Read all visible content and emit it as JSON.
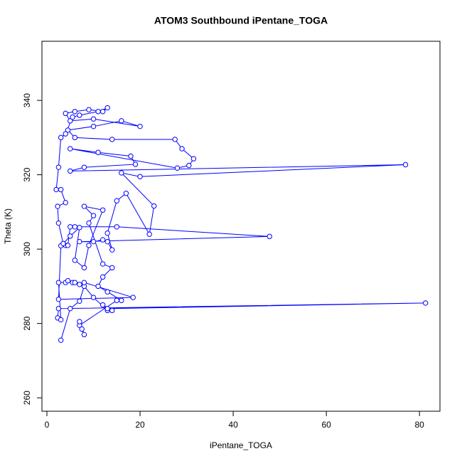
{
  "chart_data": {
    "type": "line",
    "title": "ATOM3 Southbound iPentane_TOGA",
    "xlabel": "iPentane_TOGA",
    "ylabel": "Theta (K)",
    "color": "#0000ff",
    "markers": true,
    "xlim": [
      -1.07,
      84.4
    ],
    "ylim": [
      256.4,
      355.9
    ],
    "xticks": [
      0,
      20,
      40,
      60,
      80
    ],
    "yticks": [
      260,
      280,
      300,
      320,
      340
    ],
    "x": [
      3,
      5,
      7,
      8,
      10,
      13,
      14,
      12,
      13,
      81.3,
      2.5,
      2.3,
      3,
      2.5,
      4,
      4.5,
      5.5,
      6,
      7,
      8,
      18.5,
      2.5,
      3,
      4,
      4.5,
      5,
      6,
      15,
      47.8,
      7,
      10,
      12,
      13,
      14,
      13,
      15,
      17,
      22,
      23,
      16,
      20,
      77,
      5,
      8,
      19,
      18,
      11,
      5,
      28,
      30.5,
      31.5,
      29,
      27.5,
      14,
      6,
      4.5,
      10,
      16,
      20,
      10,
      5,
      4,
      6,
      9,
      12,
      13,
      11,
      7,
      5.5,
      4,
      3,
      2.5,
      2,
      3,
      4,
      2.3,
      2.5,
      3.5,
      5,
      7,
      6,
      8,
      9,
      12,
      8,
      10,
      9,
      12,
      14,
      12,
      11,
      13,
      16,
      15,
      7,
      8,
      7,
      7.5
    ],
    "values": [
      275.5,
      284,
      286,
      290,
      287,
      283.5,
      283.5,
      285,
      284,
      285.5,
      284,
      281.5,
      281,
      291,
      291,
      291.5,
      291,
      291,
      290.5,
      291,
      287,
      286.5,
      300.9,
      301,
      301,
      306,
      306,
      306,
      303.4,
      302,
      302,
      302.5,
      302,
      299.8,
      304.3,
      313,
      315,
      304,
      311.6,
      320.5,
      319.5,
      322.7,
      321,
      322,
      322.8,
      325,
      326,
      327,
      321.8,
      322.5,
      324.3,
      327,
      329.5,
      329.5,
      330,
      332,
      333,
      334.5,
      333,
      335,
      334.5,
      336.5,
      337,
      337.5,
      337,
      338,
      337,
      336,
      335.5,
      331,
      330,
      322,
      316,
      316,
      312.5,
      311.5,
      307,
      301.5,
      303.5,
      305.8,
      297,
      295,
      301,
      310.5,
      311.5,
      309,
      307,
      296,
      295,
      292.5,
      290,
      288.5,
      286.2,
      286.2,
      279.5,
      277,
      280.5,
      278.5
    ]
  }
}
